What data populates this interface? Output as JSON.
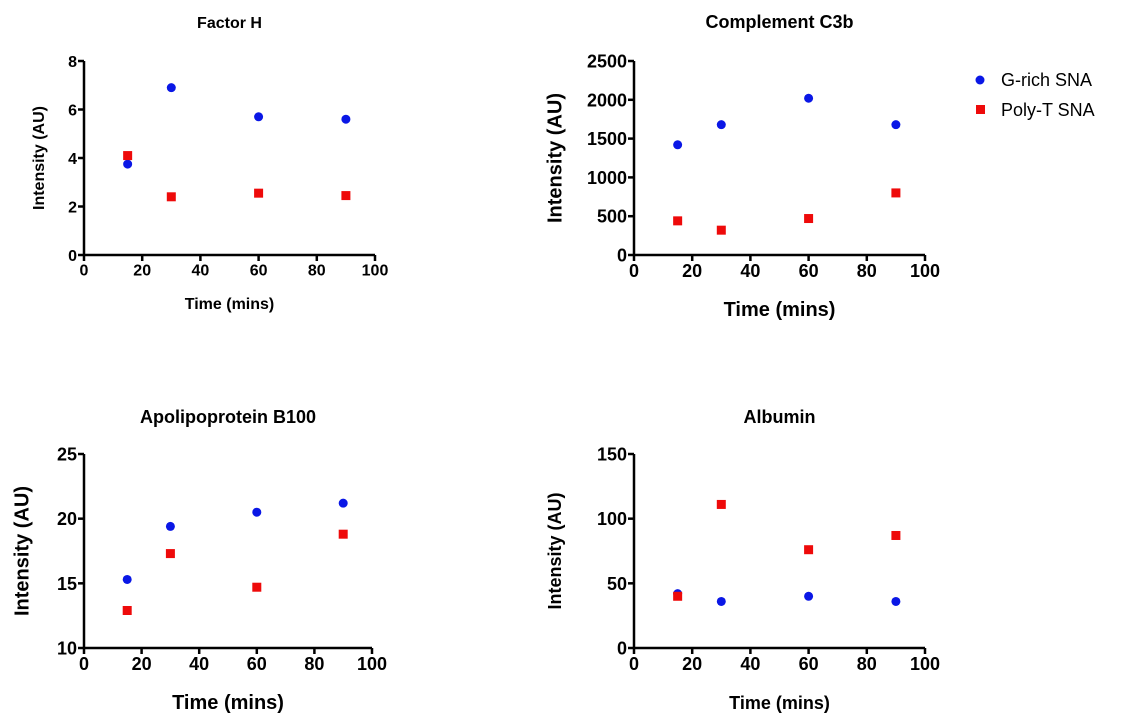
{
  "legend": {
    "entries": [
      {
        "label": "G-rich SNA",
        "color": "#0a17e6",
        "marker": "circle"
      },
      {
        "label": "Poly-T SNA",
        "color": "#ee0a0a",
        "marker": "square"
      }
    ]
  },
  "chart_data": [
    {
      "type": "scatter",
      "title": "Factor H",
      "xlabel": "Time (mins)",
      "ylabel": "Intensity (AU)",
      "xlim": [
        0,
        100
      ],
      "ylim": [
        0,
        8
      ],
      "xticks": [
        "0",
        "20",
        "40",
        "60",
        "80",
        "100"
      ],
      "yticks": [
        "0",
        "2",
        "4",
        "6",
        "8"
      ],
      "grid": false,
      "series": [
        {
          "name": "G-rich SNA",
          "x": [
            15,
            30,
            60,
            90
          ],
          "y": [
            3.75,
            6.9,
            5.7,
            5.6
          ]
        },
        {
          "name": "Poly-T SNA",
          "x": [
            15,
            30,
            60,
            90
          ],
          "y": [
            4.1,
            2.4,
            2.55,
            2.45
          ]
        }
      ]
    },
    {
      "type": "scatter",
      "title": "Complement C3b",
      "xlabel": "Time (mins)",
      "ylabel": "Intensity (AU)",
      "xlim": [
        0,
        100
      ],
      "ylim": [
        0,
        2500
      ],
      "xticks": [
        "0",
        "20",
        "40",
        "60",
        "80",
        "100"
      ],
      "yticks": [
        "0",
        "500",
        "1000",
        "1500",
        "2000",
        "2500"
      ],
      "grid": false,
      "legend_position": "right",
      "series": [
        {
          "name": "G-rich SNA",
          "x": [
            15,
            30,
            60,
            90
          ],
          "y": [
            1420,
            1680,
            2020,
            1680
          ]
        },
        {
          "name": "Poly-T SNA",
          "x": [
            15,
            30,
            60,
            90
          ],
          "y": [
            440,
            320,
            470,
            800
          ]
        }
      ]
    },
    {
      "type": "scatter",
      "title": "Apolipoprotein B100",
      "xlabel": "Time (mins)",
      "ylabel": "Intensity (AU)",
      "xlim": [
        0,
        100
      ],
      "ylim": [
        10,
        25
      ],
      "xticks": [
        "0",
        "20",
        "40",
        "60",
        "80",
        "100"
      ],
      "yticks": [
        "10",
        "15",
        "20",
        "25"
      ],
      "grid": false,
      "series": [
        {
          "name": "G-rich SNA",
          "x": [
            15,
            30,
            60,
            90
          ],
          "y": [
            15.3,
            19.4,
            20.5,
            21.2
          ]
        },
        {
          "name": "Poly-T SNA",
          "x": [
            15,
            30,
            60,
            90
          ],
          "y": [
            12.9,
            17.3,
            14.7,
            18.8
          ]
        }
      ]
    },
    {
      "type": "scatter",
      "title": "Albumin",
      "xlabel": "Time (mins)",
      "ylabel": "Intensity (AU)",
      "xlim": [
        0,
        100
      ],
      "ylim": [
        0,
        150
      ],
      "xticks": [
        "0",
        "20",
        "40",
        "60",
        "80",
        "100"
      ],
      "yticks": [
        "0",
        "50",
        "100",
        "150"
      ],
      "grid": false,
      "series": [
        {
          "name": "G-rich SNA",
          "x": [
            15,
            30,
            60,
            90
          ],
          "y": [
            42,
            36,
            40,
            36
          ]
        },
        {
          "name": "Poly-T SNA",
          "x": [
            15,
            30,
            60,
            90
          ],
          "y": [
            40,
            111,
            76,
            87
          ]
        }
      ]
    }
  ]
}
